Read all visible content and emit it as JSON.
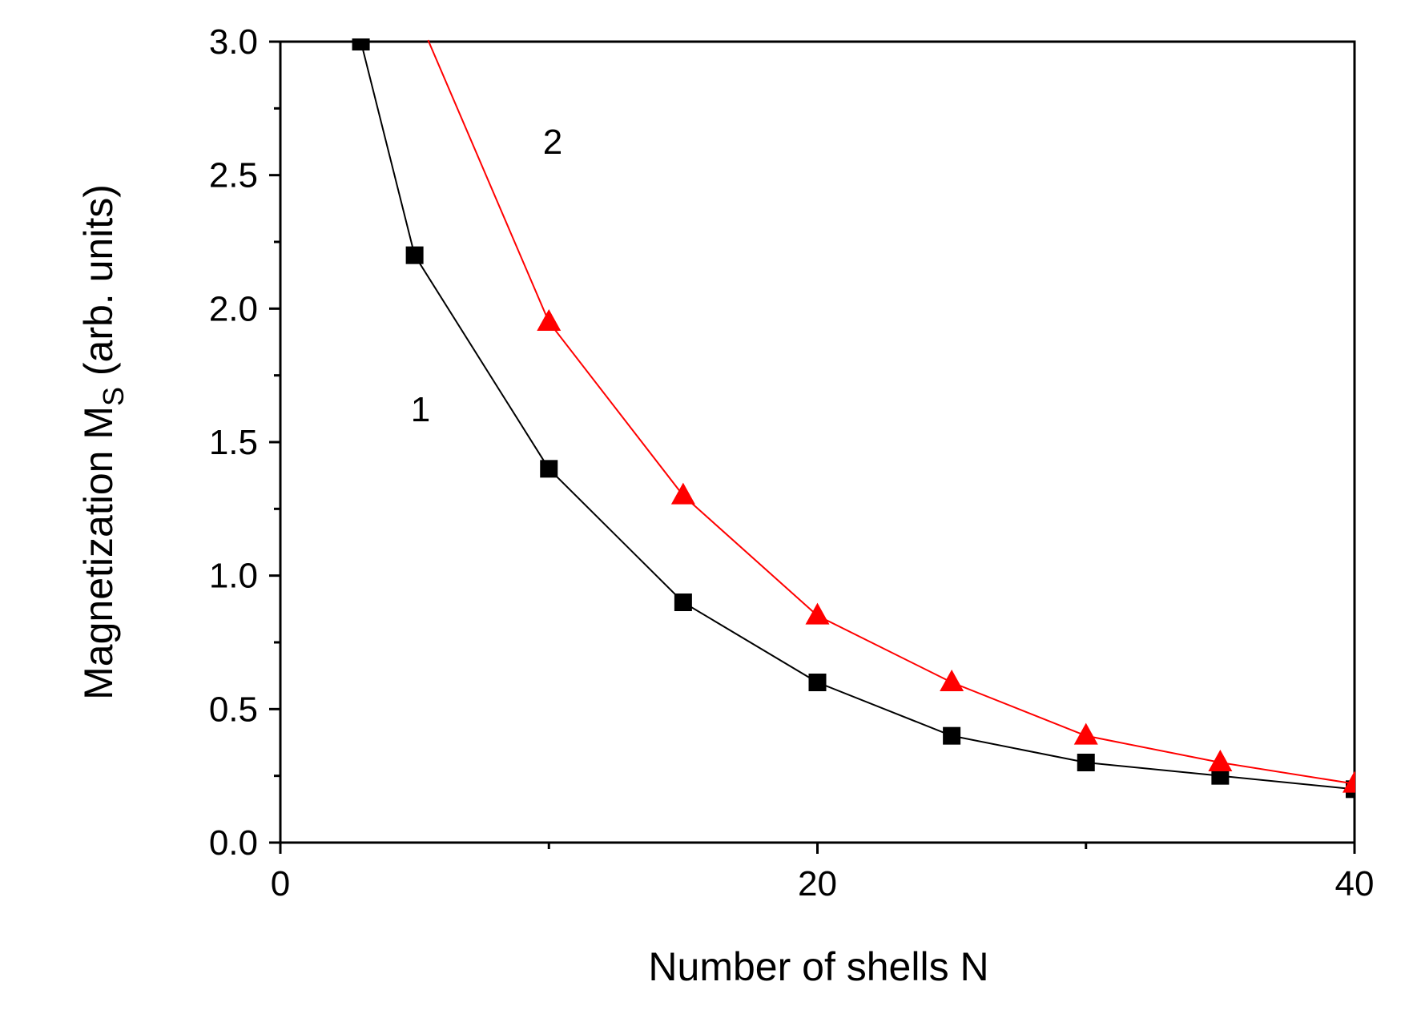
{
  "chart_data": {
    "type": "line",
    "title": "",
    "xlabel": "Number of shells N",
    "ylabel": {
      "main": "Magnetization M",
      "subscript": "S",
      "units": " (arb. units)"
    },
    "xlim": [
      0,
      40
    ],
    "ylim": [
      0,
      3.0
    ],
    "x_ticks": [
      "0",
      "20",
      "40"
    ],
    "y_ticks": [
      "0.0",
      "0.5",
      "1.0",
      "1.5",
      "2.0",
      "2.5",
      "3.0"
    ],
    "grid": false,
    "legend": "none",
    "series": [
      {
        "label": "1",
        "color": "#000000",
        "marker": "square",
        "x": [
          3,
          5,
          10,
          15,
          20,
          25,
          30,
          35,
          40
        ],
        "y": [
          3.0,
          2.2,
          1.4,
          0.9,
          0.6,
          0.4,
          0.3,
          0.25,
          0.2
        ]
      },
      {
        "label": "2",
        "color": "#ff0000",
        "marker": "triangle",
        "x": [
          10,
          15,
          20,
          25,
          30,
          35,
          40
        ],
        "y": [
          1.95,
          1.3,
          0.85,
          0.6,
          0.4,
          0.3,
          0.22
        ]
      }
    ]
  }
}
